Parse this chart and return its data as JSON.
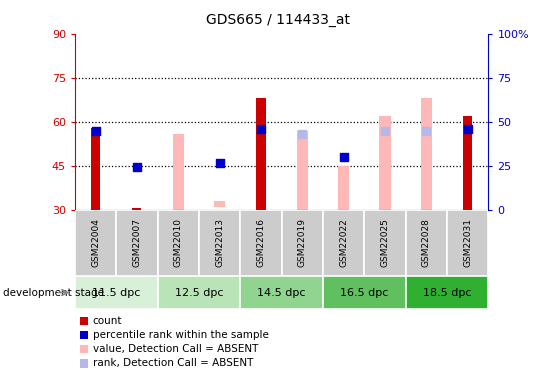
{
  "title": "GDS665 / 114433_at",
  "samples": [
    "GSM22004",
    "GSM22007",
    "GSM22010",
    "GSM22013",
    "GSM22016",
    "GSM22019",
    "GSM22022",
    "GSM22025",
    "GSM22028",
    "GSM22031"
  ],
  "stages": [
    {
      "label": "11.5 dpc",
      "color": "#d8f0d8"
    },
    {
      "label": "12.5 dpc",
      "color": "#b8e4b8"
    },
    {
      "label": "14.5 dpc",
      "color": "#90d490"
    },
    {
      "label": "16.5 dpc",
      "color": "#60c060"
    },
    {
      "label": "18.5 dpc",
      "color": "#30b030"
    }
  ],
  "red_bars": {
    "GSM22004": [
      30,
      58
    ],
    "GSM22007": [
      30,
      30.8
    ],
    "GSM22010": [
      30,
      30
    ],
    "GSM22013": [
      30,
      30
    ],
    "GSM22016": [
      30,
      68
    ],
    "GSM22019": [
      30,
      30
    ],
    "GSM22022": [
      30,
      30
    ],
    "GSM22025": [
      30,
      30
    ],
    "GSM22028": [
      30,
      30
    ],
    "GSM22031": [
      30,
      62
    ]
  },
  "pink_bars": {
    "GSM22004": null,
    "GSM22007": null,
    "GSM22010": [
      30,
      56
    ],
    "GSM22013": [
      31,
      33
    ],
    "GSM22016": null,
    "GSM22019": [
      30,
      57
    ],
    "GSM22022": [
      30,
      45
    ],
    "GSM22025": [
      30,
      62
    ],
    "GSM22028": [
      30,
      68
    ],
    "GSM22031": null
  },
  "blue_squares": {
    "GSM22004": 57,
    "GSM22007": 44.5,
    "GSM22010": null,
    "GSM22013": 46,
    "GSM22016": 57.5,
    "GSM22019": null,
    "GSM22022": 48,
    "GSM22025": null,
    "GSM22028": null,
    "GSM22031": 57.5
  },
  "light_blue_squares": {
    "GSM22004": null,
    "GSM22007": null,
    "GSM22010": null,
    "GSM22013": null,
    "GSM22016": null,
    "GSM22019": 56,
    "GSM22022": null,
    "GSM22025": 57,
    "GSM22028": 57,
    "GSM22031": null
  },
  "ylim_left": [
    30,
    90
  ],
  "ylim_right": [
    0,
    100
  ],
  "yticks_left": [
    30,
    45,
    60,
    75,
    90
  ],
  "yticks_right": [
    0,
    25,
    50,
    75,
    100
  ],
  "grid_lines": [
    45,
    60,
    75
  ],
  "left_color": "#cc0000",
  "right_color": "#0000cc",
  "red_bar_width": 0.22,
  "pink_bar_width": 0.28,
  "blue_sq_size": 30,
  "light_blue_sq_size": 30,
  "legend_items": [
    {
      "color": "#cc0000",
      "label": "count"
    },
    {
      "color": "#0000cc",
      "label": "percentile rank within the sample"
    },
    {
      "color": "#ffb8b8",
      "label": "value, Detection Call = ABSENT"
    },
    {
      "color": "#b8b8e8",
      "label": "rank, Detection Call = ABSENT"
    }
  ]
}
